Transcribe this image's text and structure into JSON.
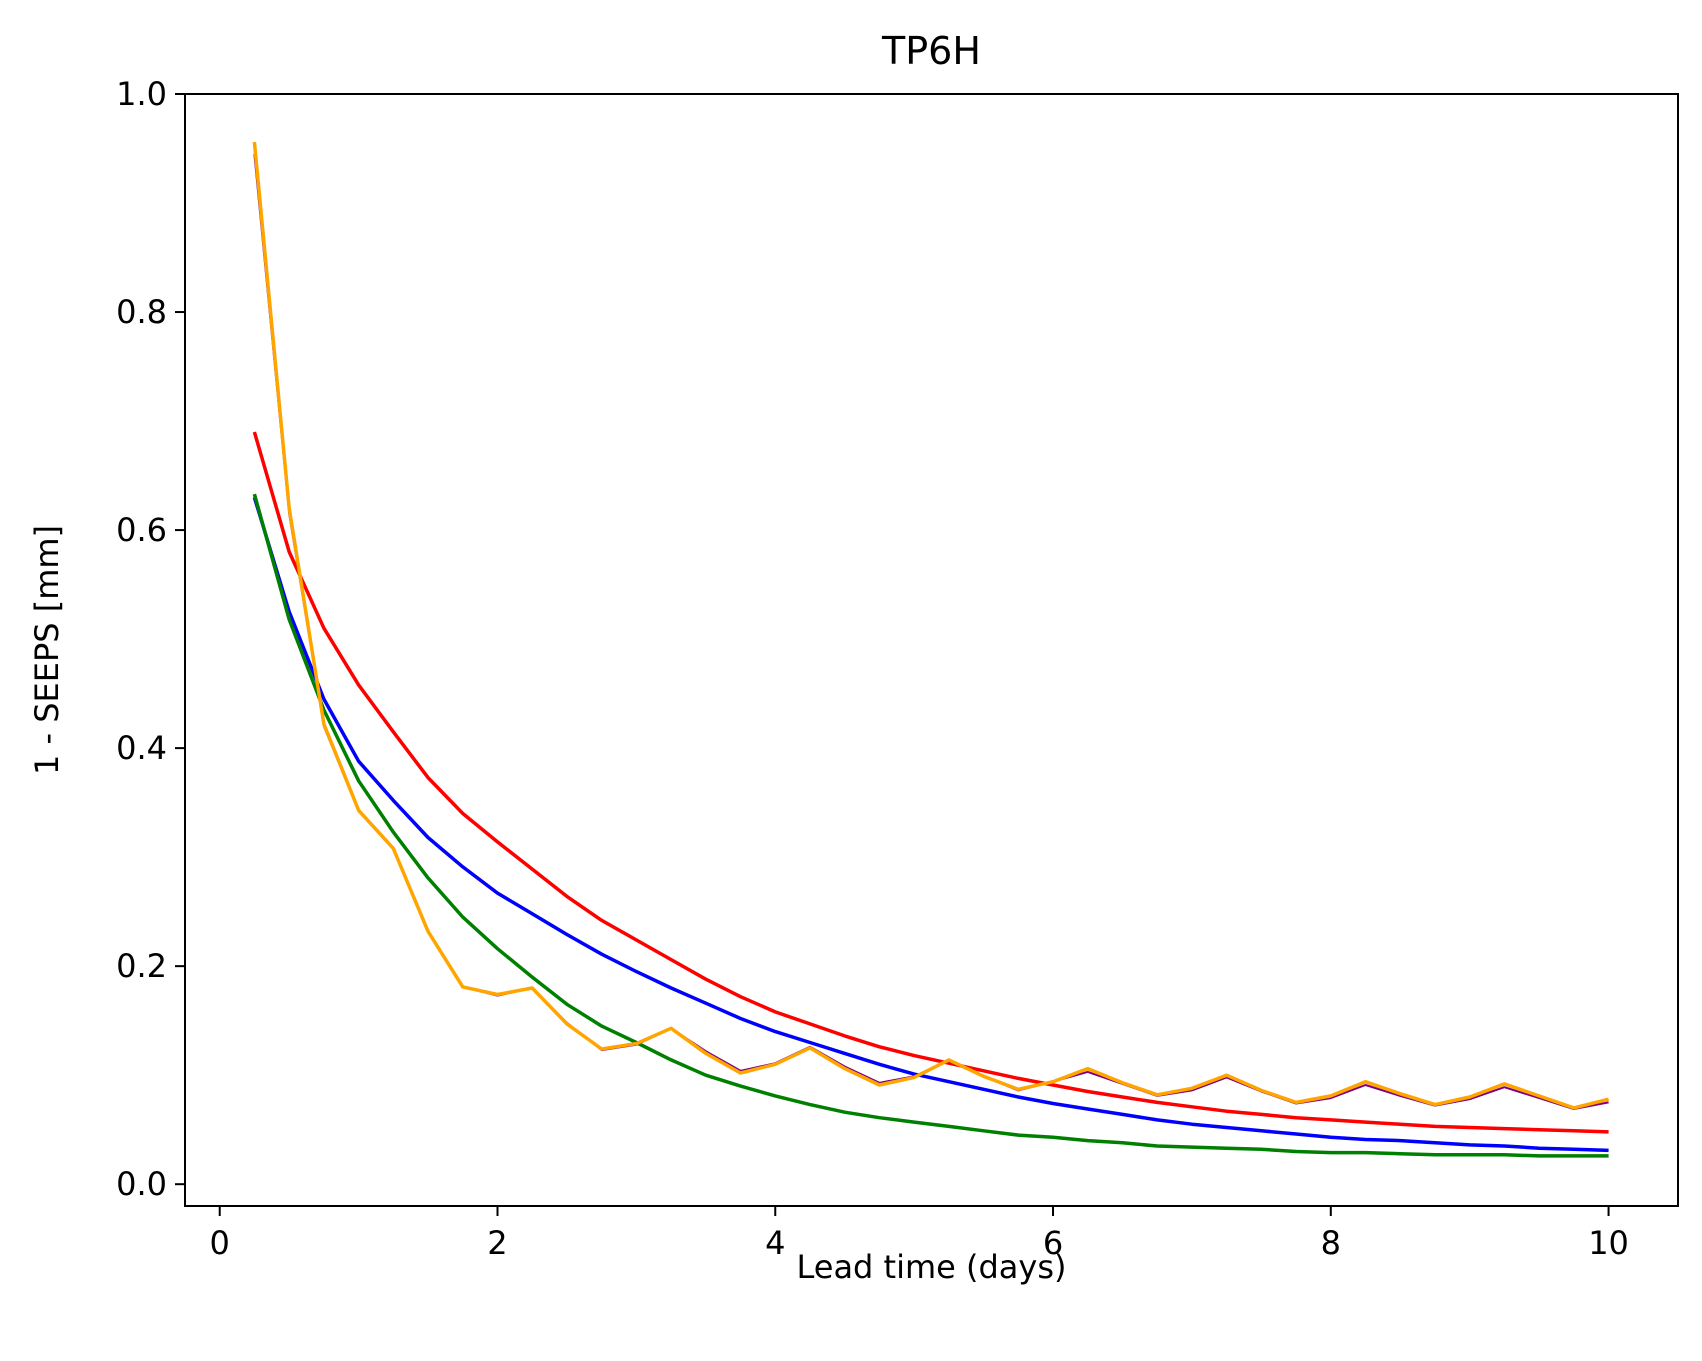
{
  "chart_data": {
    "type": "line",
    "title": "TP6H",
    "xlabel": "Lead time (days)",
    "ylabel": "1 - SEEPS [mm]",
    "xlim": [
      -0.25,
      10.5
    ],
    "ylim": [
      -0.02,
      1.0
    ],
    "xticks": [
      0,
      2,
      4,
      6,
      8,
      10
    ],
    "yticks": [
      0.0,
      0.2,
      0.4,
      0.6,
      0.8,
      1.0
    ],
    "xtick_labels": [
      "0",
      "2",
      "4",
      "6",
      "8",
      "10"
    ],
    "ytick_labels": [
      "0.0",
      "0.2",
      "0.4",
      "0.6",
      "0.8",
      "1.0"
    ],
    "grid": false,
    "x": [
      0.25,
      0.5,
      0.75,
      1.0,
      1.25,
      1.5,
      1.75,
      2.0,
      2.25,
      2.5,
      2.75,
      3.0,
      3.25,
      3.5,
      3.75,
      4.0,
      4.25,
      4.5,
      4.75,
      5.0,
      5.25,
      5.5,
      5.75,
      6.0,
      6.25,
      6.5,
      6.75,
      7.0,
      7.25,
      7.5,
      7.75,
      8.0,
      8.25,
      8.5,
      8.75,
      9.0,
      9.25,
      9.5,
      9.75,
      10.0
    ],
    "series": [
      {
        "color": "#ff0000",
        "width": 3.5,
        "values": [
          0.69,
          0.58,
          0.51,
          0.458,
          0.415,
          0.373,
          0.34,
          0.314,
          0.289,
          0.264,
          0.242,
          0.224,
          0.206,
          0.188,
          0.172,
          0.158,
          0.147,
          0.136,
          0.126,
          0.118,
          0.111,
          0.104,
          0.097,
          0.091,
          0.085,
          0.08,
          0.075,
          0.071,
          0.067,
          0.064,
          0.061,
          0.059,
          0.057,
          0.055,
          0.053,
          0.052,
          0.051,
          0.05,
          0.049,
          0.048
        ]
      },
      {
        "color": "#0000ff",
        "width": 3.5,
        "values": [
          0.63,
          0.525,
          0.445,
          0.388,
          0.352,
          0.318,
          0.291,
          0.267,
          0.248,
          0.229,
          0.211,
          0.195,
          0.18,
          0.166,
          0.152,
          0.14,
          0.13,
          0.12,
          0.11,
          0.101,
          0.094,
          0.087,
          0.08,
          0.074,
          0.069,
          0.064,
          0.059,
          0.055,
          0.052,
          0.049,
          0.046,
          0.043,
          0.041,
          0.04,
          0.038,
          0.036,
          0.035,
          0.033,
          0.032,
          0.031
        ]
      },
      {
        "color": "#008000",
        "width": 3.5,
        "values": [
          0.633,
          0.518,
          0.435,
          0.37,
          0.323,
          0.281,
          0.245,
          0.216,
          0.19,
          0.165,
          0.145,
          0.13,
          0.114,
          0.1,
          0.09,
          0.081,
          0.073,
          0.066,
          0.061,
          0.057,
          0.053,
          0.049,
          0.045,
          0.043,
          0.04,
          0.038,
          0.035,
          0.034,
          0.033,
          0.032,
          0.03,
          0.029,
          0.029,
          0.028,
          0.027,
          0.027,
          0.027,
          0.026,
          0.026,
          0.026
        ]
      },
      {
        "color": "#800080",
        "width": 2,
        "values": [
          0.945,
          0.615,
          0.42,
          0.342,
          0.308,
          0.232,
          0.181,
          0.173,
          0.18,
          0.148,
          0.123,
          0.128,
          0.143,
          0.122,
          0.104,
          0.111,
          0.126,
          0.108,
          0.093,
          0.099,
          0.113,
          0.099,
          0.086,
          0.094,
          0.103,
          0.092,
          0.081,
          0.086,
          0.098,
          0.085,
          0.074,
          0.079,
          0.091,
          0.081,
          0.072,
          0.078,
          0.089,
          0.079,
          0.069,
          0.075
        ]
      },
      {
        "color": "#ffa500",
        "width": 3.5,
        "values": [
          0.956,
          0.62,
          0.422,
          0.343,
          0.308,
          0.232,
          0.181,
          0.174,
          0.18,
          0.147,
          0.124,
          0.129,
          0.143,
          0.12,
          0.102,
          0.11,
          0.125,
          0.106,
          0.091,
          0.098,
          0.114,
          0.099,
          0.087,
          0.094,
          0.106,
          0.093,
          0.082,
          0.088,
          0.1,
          0.086,
          0.075,
          0.081,
          0.094,
          0.083,
          0.073,
          0.08,
          0.092,
          0.081,
          0.07,
          0.078
        ]
      }
    ]
  }
}
